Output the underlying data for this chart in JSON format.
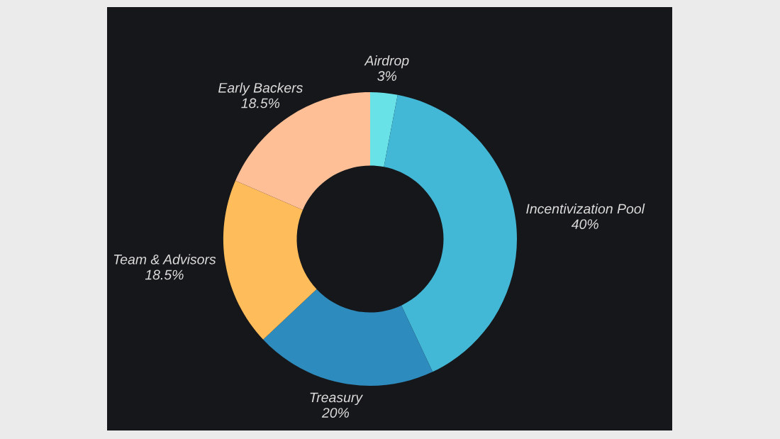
{
  "chart_data": {
    "type": "donut",
    "categories": [
      "Airdrop",
      "Incentivization Pool",
      "Treasury",
      "Team & Advisors",
      "Early Backers"
    ],
    "values": [
      3,
      40,
      20,
      18.5,
      18.5
    ],
    "value_labels": [
      "3%",
      "40%",
      "20%",
      "18.5%",
      "18.5%"
    ],
    "colors": [
      "#68e2e6",
      "#43b8d6",
      "#2e8bbd",
      "#ffbc5a",
      "#ffbf96"
    ]
  }
}
